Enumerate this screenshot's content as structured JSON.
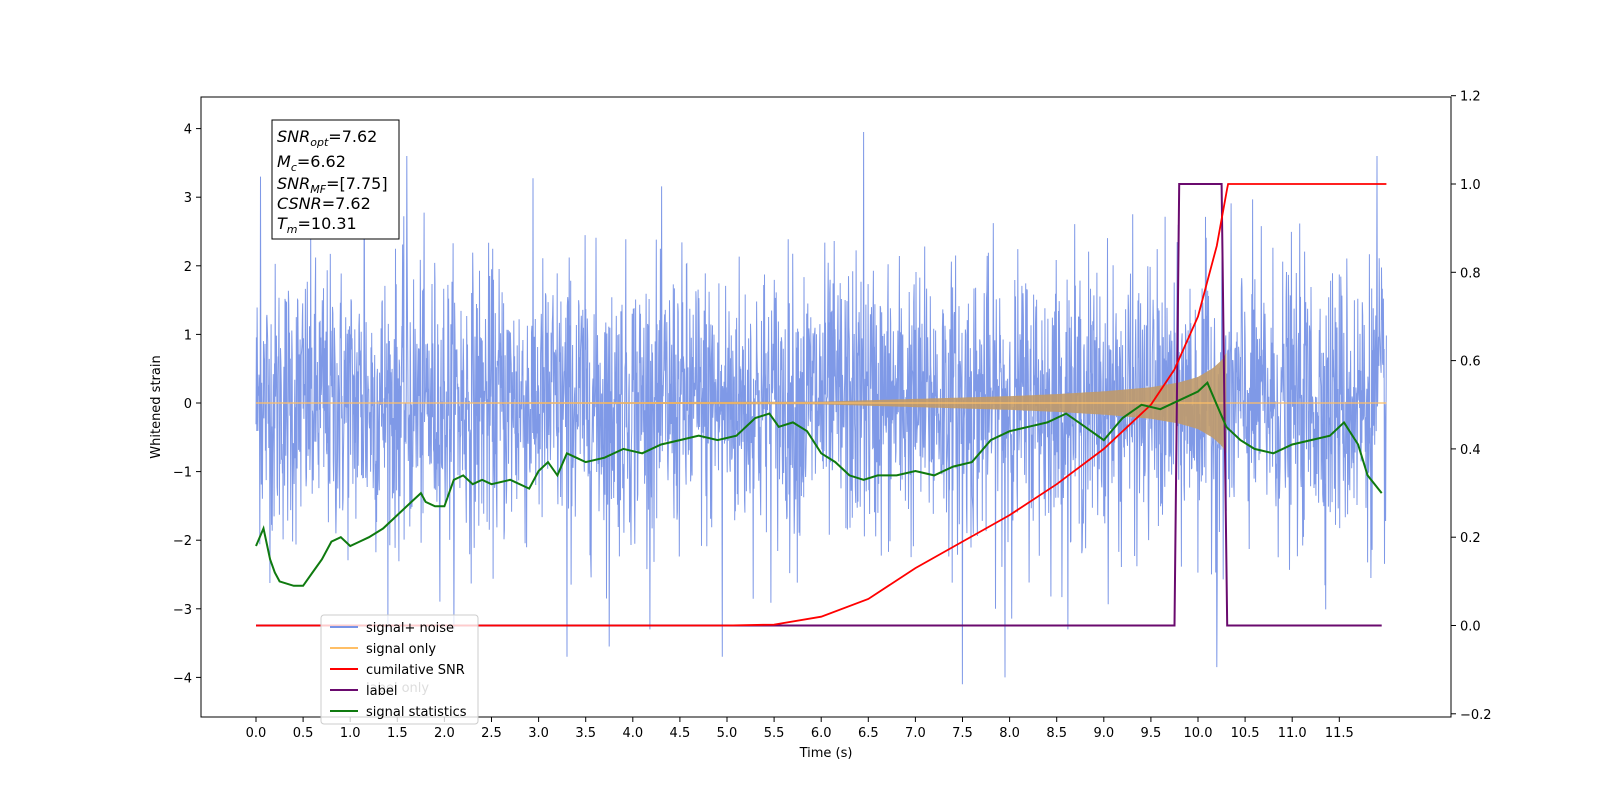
{
  "chart_data": {
    "type": "line",
    "title": "",
    "xlabel": "Time (s)",
    "ylabel": "Whitened strain",
    "xlim": [
      -0.6,
      12.6
    ],
    "ylim": [
      -4.5,
      4.45
    ],
    "y2lim": [
      -0.2,
      1.2
    ],
    "x_ticks": [
      "0.0",
      "0.5",
      "1.0",
      "1.5",
      "2.0",
      "2.5",
      "3.0",
      "3.5",
      "4.0",
      "4.5",
      "5.0",
      "5.5",
      "6.0",
      "6.5",
      "7.0",
      "7.5",
      "8.0",
      "8.5",
      "9.0",
      "9.5",
      "10.0",
      "10.5",
      "11.0",
      "11.5"
    ],
    "y_ticks": [
      "4",
      "3",
      "2",
      "1",
      "0",
      "−1",
      "−2",
      "−3",
      "−4"
    ],
    "y2_ticks": [
      "1.2",
      "1.0",
      "0.8",
      "0.6",
      "0.4",
      "0.2",
      "0.0",
      "−0.2"
    ],
    "grid": false,
    "legend_position": "lower-left",
    "legend": [
      {
        "label": "signal+ noise",
        "color": "#7893e6"
      },
      {
        "label": "signal only",
        "color": "#ffbf66"
      },
      {
        "label": "cumilative SNR",
        "color": "#ff0000"
      },
      {
        "label": "label",
        "color": "#6a0a6e"
      },
      {
        "label": "signal statistics",
        "color": "#0f7a0f"
      }
    ],
    "legend_hidden_text": "label only",
    "annotation": {
      "snr_opt": {
        "base": "SNR",
        "sub": "opt",
        "value": "=7.62"
      },
      "mc": {
        "base": "M",
        "sub": "c",
        "value": "=6.62"
      },
      "snr_mf": {
        "base": "SNR",
        "sub": "MF",
        "value": "=[7.75]"
      },
      "csnr": {
        "base": "CSNR",
        "value": "=7.62"
      },
      "tm": {
        "base": "T",
        "sub": "m",
        "value": "=10.31"
      }
    },
    "series": [
      {
        "name": "signal+ noise",
        "axis": "left",
        "color": "#7893e6",
        "x_range": [
          0.0,
          12.0
        ],
        "envelope": "approximately ±1.5 with spikes to ±3.5",
        "notable_peaks": [
          [
            0.05,
            3.3
          ],
          [
            1.15,
            3.65
          ],
          [
            1.6,
            3.6
          ],
          [
            3.3,
            -3.7
          ],
          [
            3.75,
            -3.55
          ],
          [
            4.95,
            -3.7
          ],
          [
            6.45,
            3.95
          ],
          [
            7.5,
            -4.1
          ],
          [
            7.95,
            -4.0
          ],
          [
            10.2,
            -3.85
          ],
          [
            11.9,
            3.6
          ]
        ]
      },
      {
        "name": "signal only",
        "axis": "left",
        "color": "#ffbf66",
        "x": [
          0.0,
          6.0,
          7.0,
          8.0,
          8.5,
          9.0,
          9.5,
          9.8,
          10.0,
          10.15,
          10.25,
          10.31
        ],
        "envelope": [
          0.0,
          0.02,
          0.06,
          0.1,
          0.13,
          0.17,
          0.23,
          0.3,
          0.38,
          0.5,
          0.62,
          0.75
        ]
      },
      {
        "name": "cumilative SNR",
        "axis": "right",
        "color": "#ff0000",
        "x": [
          0.0,
          5.0,
          5.5,
          6.0,
          6.5,
          7.0,
          7.5,
          8.0,
          8.5,
          9.0,
          9.5,
          9.75,
          10.0,
          10.2,
          10.31,
          10.32,
          11.0,
          11.5,
          12.0
        ],
        "values": [
          0.0,
          0.0,
          0.002,
          0.02,
          0.06,
          0.13,
          0.19,
          0.25,
          0.32,
          0.4,
          0.5,
          0.58,
          0.7,
          0.86,
          0.99,
          1.0,
          1.0,
          1.0,
          1.0
        ]
      },
      {
        "name": "label",
        "axis": "right",
        "color": "#6a0a6e",
        "x": [
          0.0,
          9.75,
          9.8,
          10.25,
          10.31,
          11.95
        ],
        "values": [
          0.0,
          0.0,
          1.0,
          1.0,
          0.0,
          0.0
        ]
      },
      {
        "name": "signal statistics",
        "axis": "right",
        "color": "#0f7a0f",
        "x": [
          0.0,
          0.08,
          0.15,
          0.2,
          0.25,
          0.4,
          0.5,
          0.6,
          0.7,
          0.8,
          0.9,
          1.0,
          1.1,
          1.2,
          1.35,
          1.5,
          1.65,
          1.75,
          1.8,
          1.9,
          2.0,
          2.1,
          2.2,
          2.3,
          2.4,
          2.5,
          2.7,
          2.9,
          3.0,
          3.1,
          3.2,
          3.3,
          3.4,
          3.5,
          3.7,
          3.9,
          4.1,
          4.3,
          4.5,
          4.7,
          4.9,
          5.1,
          5.3,
          5.45,
          5.55,
          5.7,
          5.85,
          6.0,
          6.15,
          6.3,
          6.45,
          6.6,
          6.8,
          7.0,
          7.2,
          7.4,
          7.6,
          7.8,
          8.0,
          8.2,
          8.4,
          8.6,
          8.8,
          9.0,
          9.2,
          9.4,
          9.6,
          9.8,
          10.0,
          10.1,
          10.2,
          10.3,
          10.45,
          10.6,
          10.8,
          11.0,
          11.2,
          11.4,
          11.55,
          11.7,
          11.8,
          11.95
        ],
        "values": [
          0.18,
          0.22,
          0.15,
          0.12,
          0.1,
          0.09,
          0.09,
          0.12,
          0.15,
          0.19,
          0.2,
          0.18,
          0.19,
          0.2,
          0.22,
          0.25,
          0.28,
          0.3,
          0.28,
          0.27,
          0.27,
          0.33,
          0.34,
          0.32,
          0.33,
          0.32,
          0.33,
          0.31,
          0.35,
          0.37,
          0.34,
          0.39,
          0.38,
          0.37,
          0.38,
          0.4,
          0.39,
          0.41,
          0.42,
          0.43,
          0.42,
          0.43,
          0.47,
          0.48,
          0.45,
          0.46,
          0.44,
          0.39,
          0.37,
          0.34,
          0.33,
          0.34,
          0.34,
          0.35,
          0.34,
          0.36,
          0.37,
          0.42,
          0.44,
          0.45,
          0.46,
          0.48,
          0.45,
          0.42,
          0.47,
          0.5,
          0.49,
          0.51,
          0.53,
          0.55,
          0.5,
          0.45,
          0.42,
          0.4,
          0.39,
          0.41,
          0.42,
          0.43,
          0.46,
          0.41,
          0.34,
          0.3
        ]
      }
    ]
  }
}
